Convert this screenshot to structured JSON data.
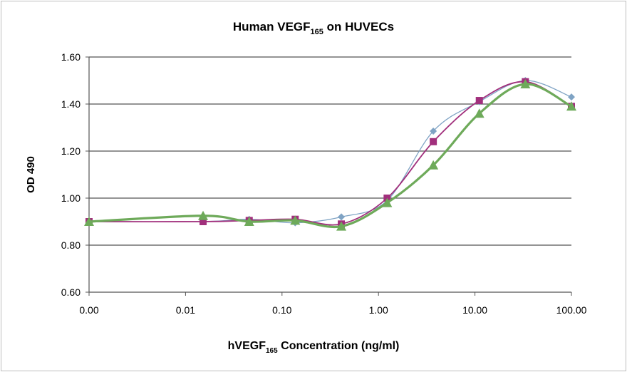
{
  "chart_data": {
    "type": "line",
    "title": "Human VEGF",
    "title_subscript": "165",
    "title_suffix": " on HUVECs",
    "xlabel": "hVEGF",
    "xlabel_subscript": "165",
    "xlabel_suffix": " Concentration (ng/ml)",
    "ylabel": "OD 490",
    "x_scale": "log",
    "xlim": [
      0.001,
      100
    ],
    "ylim": [
      0.6,
      1.6
    ],
    "x_ticks": [
      0.001,
      0.01,
      0.1,
      1,
      10,
      100
    ],
    "x_tick_labels": [
      "0.00",
      "0.01",
      "0.10",
      "1.00",
      "10.00",
      "100.00"
    ],
    "y_ticks": [
      0.6,
      0.8,
      1.0,
      1.2,
      1.4,
      1.6
    ],
    "y_tick_labels": [
      "0.60",
      "0.80",
      "1.00",
      "1.20",
      "1.40",
      "1.60"
    ],
    "grid": "horizontal",
    "legend": "none",
    "x": [
      0.001,
      0.0152,
      0.0457,
      0.137,
      0.412,
      1.23,
      3.7,
      11.1,
      33.3,
      100
    ],
    "series": [
      {
        "marker": "diamond",
        "color": "#7fa3c4",
        "values": [
          0.9,
          0.9,
          0.91,
          0.895,
          0.92,
          0.99,
          1.285,
          1.41,
          1.5,
          1.43
        ]
      },
      {
        "marker": "square",
        "color": "#a12f7c",
        "values": [
          0.9,
          0.9,
          0.905,
          0.91,
          0.89,
          1.0,
          1.24,
          1.415,
          1.495,
          1.39
        ]
      },
      {
        "marker": "triangle",
        "color": "#6eaa5a",
        "values": [
          0.9,
          0.925,
          0.9,
          0.905,
          0.88,
          0.98,
          1.14,
          1.36,
          1.485,
          1.39
        ]
      }
    ]
  }
}
